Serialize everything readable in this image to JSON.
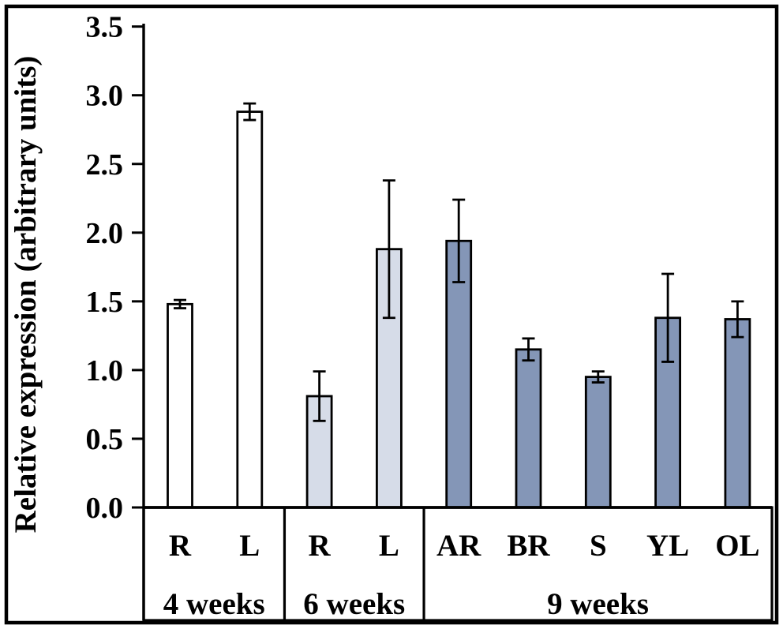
{
  "figure": {
    "background_color": "#ffffff",
    "border_color": "#000000",
    "text_color": "#000000"
  },
  "chart_data": {
    "type": "bar",
    "title": "",
    "ylabel": "Relative expression (arbitrary units)",
    "xlabel": "",
    "ylim": [
      0,
      3.5
    ],
    "ytick_step": 0.5,
    "yticks": [
      {
        "value": 0.0,
        "label": "0.0"
      },
      {
        "value": 0.5,
        "label": "0.5"
      },
      {
        "value": 1.0,
        "label": "1.0"
      },
      {
        "value": 1.5,
        "label": "1.5"
      },
      {
        "value": 2.0,
        "label": "2.0"
      },
      {
        "value": 2.5,
        "label": "2.5"
      },
      {
        "value": 3.0,
        "label": "3.0"
      },
      {
        "value": 3.5,
        "label": "3.5"
      }
    ],
    "grid": false,
    "legend": false,
    "error_bars": true,
    "bar_border_color": "#000000",
    "error_bar_color": "#000000",
    "groups": [
      {
        "label": "4 weeks",
        "bar_fill": "#ffffff",
        "bars": [
          {
            "label": "R",
            "value": 1.48,
            "error": 0.03
          },
          {
            "label": "L",
            "value": 2.88,
            "error": 0.06
          }
        ]
      },
      {
        "label": "6 weeks",
        "bar_fill": "#d6dce8",
        "bars": [
          {
            "label": "R",
            "value": 0.81,
            "error": 0.18
          },
          {
            "label": "L",
            "value": 1.88,
            "error": 0.5
          }
        ]
      },
      {
        "label": "9 weeks",
        "bar_fill": "#8496b7",
        "bars": [
          {
            "label": "AR",
            "value": 1.94,
            "error": 0.3
          },
          {
            "label": "BR",
            "value": 1.15,
            "error": 0.08
          },
          {
            "label": "S",
            "value": 0.95,
            "error": 0.04
          },
          {
            "label": "YL",
            "value": 1.38,
            "error": 0.32
          },
          {
            "label": "OL",
            "value": 1.37,
            "error": 0.13
          }
        ]
      }
    ]
  }
}
